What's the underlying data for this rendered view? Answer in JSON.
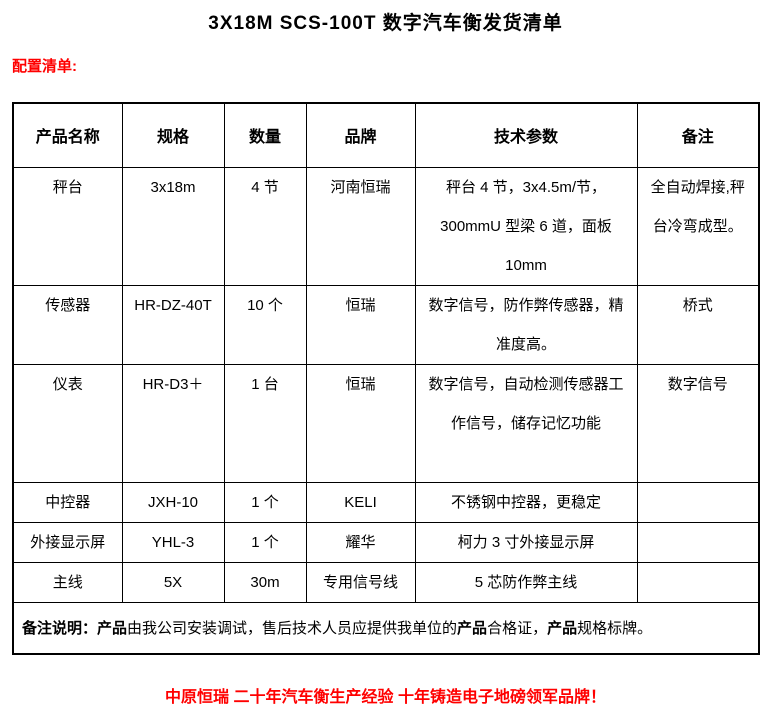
{
  "page": {
    "title": "3X18M SCS-100T 数字汽车衡发货清单",
    "section_label": "配置清单:",
    "footer": "中原恒瑞 二十年汽车衡生产经验 十年铸造电子地磅领军品牌！"
  },
  "colors": {
    "accent_red": "#FF0000",
    "text": "#000000",
    "border": "#000000"
  },
  "table": {
    "headers": [
      "产品名称",
      "规格",
      "数量",
      "品牌",
      "技术参数",
      "备注"
    ],
    "rows": [
      {
        "name": "秤台",
        "spec": "3x18m",
        "qty": "4 节",
        "brand": "河南恒瑞",
        "params": "秤台 4 节，3x4.5m/节，300mmU 型梁 6 道，面板 10mm",
        "remark": "全自动焊接,秤台冷弯成型。"
      },
      {
        "name": "传感器",
        "spec": "HR-DZ-40T",
        "qty": "10 个",
        "brand": "恒瑞",
        "params": "数字信号，防作弊传感器，精准度高。",
        "remark": "桥式"
      },
      {
        "name": "仪表",
        "spec": "HR-D3＋",
        "qty": "1 台",
        "brand": "恒瑞",
        "params": "数字信号，自动检测传感器工作信号，储存记忆功能",
        "remark": "数字信号"
      },
      {
        "name": "中控器",
        "spec": "JXH-10",
        "qty": "1 个",
        "brand": "KELI",
        "params": "不锈钢中控器，更稳定",
        "remark": ""
      },
      {
        "name": "外接显示屏",
        "spec": "YHL-3",
        "qty": "1 个",
        "brand": "耀华",
        "params": "柯力 3 寸外接显示屏",
        "remark": ""
      },
      {
        "name": "主线",
        "spec": "5X",
        "qty": "30m",
        "brand": "专用信号线",
        "params": "5 芯防作弊主线",
        "remark": ""
      }
    ],
    "note": {
      "label": "备注说明：",
      "segments": [
        {
          "text": "产品",
          "bold": true
        },
        {
          "text": "由我公司安装调试，售后技术人员应提供我单位的",
          "bold": false
        },
        {
          "text": "产品",
          "bold": true
        },
        {
          "text": "合格证，",
          "bold": false
        },
        {
          "text": "产品",
          "bold": true
        },
        {
          "text": "规格标牌。",
          "bold": false
        }
      ]
    }
  }
}
